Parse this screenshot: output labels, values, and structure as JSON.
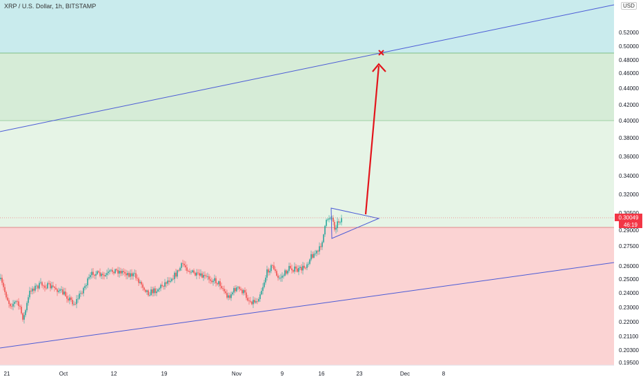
{
  "header": {
    "title": "XRP / U.S. Dollar, 1h, BITSTAMP",
    "currency_button": "USD"
  },
  "chart_data": {
    "type": "line",
    "title": "XRP / U.S. Dollar, 1h, BITSTAMP",
    "price_ticks": [
      "0.52000",
      "0.50000",
      "0.48000",
      "0.46000",
      "0.44000",
      "0.42000",
      "0.40000",
      "0.38000",
      "0.36000",
      "0.34000",
      "0.32000",
      "0.30500",
      "0.29000",
      "0.27500",
      "0.26000",
      "0.25000",
      "0.24000",
      "0.23000",
      "0.22000",
      "0.21100",
      "0.20300",
      "0.19500"
    ],
    "date_ticks": [
      "21",
      "Oct",
      "12",
      "19",
      "Nov",
      "9",
      "16",
      "23",
      "Dec",
      "8"
    ],
    "current_price": "0.30049",
    "countdown": "46:19",
    "zones": [
      {
        "name": "blue",
        "color": "#c9ebed"
      },
      {
        "name": "green",
        "color": "#d6ecd7"
      },
      {
        "name": "light-green",
        "color": "#e6f4e6"
      },
      {
        "name": "red",
        "color": "#fbd3d3"
      }
    ],
    "colors": {
      "channel": "#4a5ad6",
      "candle_up": "#26a69a",
      "candle_down": "#ef5350",
      "arrow": "#e3141b",
      "price_tag": "#f23645"
    }
  }
}
